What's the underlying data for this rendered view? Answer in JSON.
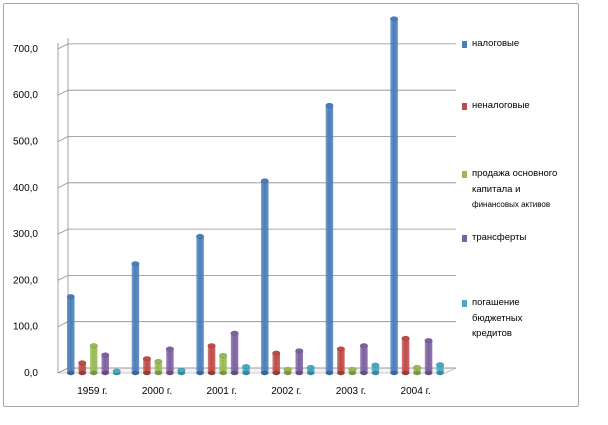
{
  "chart_data": {
    "type": "bar",
    "categories": [
      "1959 г.",
      "2000 г.",
      "2001 г.",
      "2002 г.",
      "2003 г.",
      "2004 г."
    ],
    "series": [
      {
        "name": "налоговые",
        "values": [
          165,
          236,
          295,
          415,
          578,
          765
        ],
        "color": "#4a7ebb"
      },
      {
        "name": "неналоговые",
        "values": [
          22,
          31,
          59,
          43,
          52,
          75
        ],
        "color": "#be4b48"
      },
      {
        "name": "продажа основного капитала и финансовых активов",
        "values": [
          59,
          25,
          38,
          8,
          8,
          12
        ],
        "color": "#98b954"
      },
      {
        "name": "трансферты",
        "values": [
          39,
          52,
          86,
          48,
          59,
          70
        ],
        "color": "#7d60a0"
      },
      {
        "name": "погашение бюджетных кредитов",
        "values": [
          4,
          6,
          14,
          12,
          17,
          18
        ],
        "color": "#46aac5"
      }
    ],
    "y_ticks": [
      "0,0",
      "100,0",
      "200,0",
      "300,0",
      "400,0",
      "500,0",
      "600,0",
      "700,0"
    ],
    "ylim": [
      0,
      770
    ],
    "grid": true,
    "legend_position": "right",
    "legend_lines": [
      [
        "налоговые"
      ],
      [
        "неналоговые"
      ],
      [
        "продажа основного",
        "капитала и",
        "финансовых активов"
      ],
      [
        "трансферты"
      ],
      [
        "погашение",
        "бюджетных",
        "кредитов"
      ]
    ],
    "title": "",
    "xlabel": "",
    "ylabel": ""
  }
}
